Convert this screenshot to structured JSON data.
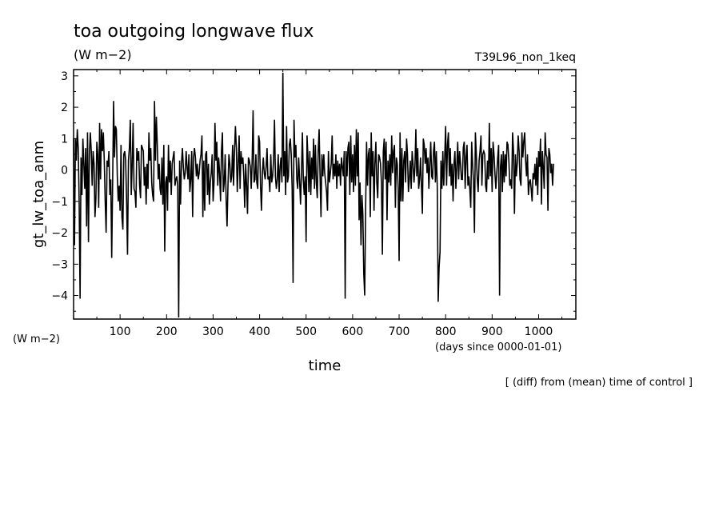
{
  "chart_data": {
    "type": "line",
    "title": "toa outgoing longwave flux",
    "units": "(W m−2)",
    "run_label": "T39L96_non_1keq",
    "ylabel": "gt_lw_toa_anm",
    "yunits_left": "(W m−2)",
    "xlabel": "time",
    "xunits": "(days since 0000-01-01)",
    "note": "[ (diff) from (mean) time of control ]",
    "xlim": [
      0,
      1080
    ],
    "ylim": [
      -4.75,
      3.2
    ],
    "xticks": [
      100,
      200,
      300,
      400,
      500,
      600,
      700,
      800,
      900,
      1000
    ],
    "xtick_labels": [
      "100",
      "200",
      "300",
      "400",
      "500",
      "600",
      "700",
      "800",
      "900",
      "1000"
    ],
    "yticks": [
      -4,
      -3,
      -2,
      -1,
      0,
      1,
      2,
      3
    ],
    "ytick_labels": [
      "−4",
      "−3",
      "−2",
      "−1",
      "0",
      "1",
      "2",
      "3"
    ],
    "series": [
      {
        "x_start": 0,
        "x_step": 2,
        "values": [
          1.0,
          -2.4,
          1.0,
          0.3,
          1.3,
          0.7,
          -1.0,
          -4.1,
          0.4,
          -0.8,
          1.0,
          0.2,
          -0.6,
          0.7,
          -1.8,
          1.2,
          -2.3,
          0.5,
          1.2,
          0.6,
          -0.5,
          0.6,
          0.2,
          -1.5,
          -0.9,
          0.9,
          0.5,
          -1.2,
          1.5,
          -0.3,
          1.3,
          0.6,
          1.2,
          0.3,
          -1.0,
          -2.0,
          0.3,
          0.1,
          0.6,
          -0.8,
          -0.3,
          -2.8,
          -0.4,
          2.2,
          0.4,
          1.4,
          1.3,
          -0.2,
          -1.0,
          -0.5,
          -1.3,
          0.8,
          -1.5,
          -1.9,
          0.5,
          0.6,
          0.3,
          -1.0,
          -2.7,
          0.3,
          0.7,
          1.6,
          -0.8,
          0.2,
          1.5,
          -0.6,
          -0.7,
          -1.2,
          0.7,
          0.3,
          0.6,
          -0.5,
          -0.9,
          0.8,
          0.7,
          0.6,
          -0.5,
          0.1,
          -1.1,
          0.2,
          -0.6,
          1.2,
          0.3,
          0.7,
          -0.4,
          -0.8,
          -1.0,
          2.2,
          0.3,
          1.7,
          0.8,
          -0.3,
          0.2,
          -0.6,
          -0.8,
          0.4,
          -1.1,
          0.8,
          -2.6,
          -0.4,
          -0.2,
          -1.3,
          0.8,
          -0.4,
          0.3,
          -0.8,
          0.2,
          0.4,
          0.6,
          -0.5,
          -0.3,
          -0.2,
          -0.5,
          -4.7,
          0.3,
          -1.1,
          0.2,
          0.7,
          0.1,
          -0.3,
          -0.1,
          0.6,
          0.1,
          -0.3,
          0.5,
          -0.7,
          -0.3,
          0.6,
          -1.5,
          0.4,
          0.7,
          0.4,
          -0.2,
          0.2,
          -0.3,
          -0.1,
          0.3,
          0.5,
          1.1,
          -1.5,
          0.3,
          -1.3,
          0.5,
          0.6,
          -0.8,
          0.2,
          -1.1,
          -0.4,
          -0.1,
          0.5,
          -1.0,
          -0.4,
          1.5,
          0.3,
          0.9,
          -0.5,
          0.4,
          -0.1,
          -1.0,
          0.6,
          1.2,
          -0.7,
          -0.4,
          0.5,
          -0.9,
          -1.8,
          -0.5,
          0.5,
          0.2,
          -0.4,
          -0.2,
          0.8,
          -0.5,
          0.6,
          1.4,
          0.7,
          -0.7,
          0.2,
          1.1,
          -0.6,
          0.6,
          0.2,
          0.4,
          -0.2,
          -1.2,
          0.2,
          -0.5,
          -1.4,
          0.4,
          0.3,
          0.1,
          -0.6,
          0.3,
          1.9,
          -0.4,
          -0.3,
          0.5,
          -0.4,
          -0.6,
          1.1,
          0.9,
          -0.5,
          -1.3,
          -0.1,
          0.4,
          -0.1,
          -0.3,
          0.1,
          0.7,
          -0.3,
          -0.2,
          -0.7,
          0.5,
          -0.4,
          -0.2,
          0.3,
          1.6,
          -0.2,
          -0.6,
          -0.3,
          0.5,
          -0.7,
          0.1,
          0.4,
          -0.4,
          3.1,
          -0.2,
          0.6,
          -0.8,
          1.4,
          -0.4,
          -0.2,
          0.8,
          1.0,
          0.5,
          -0.6,
          -3.6,
          1.6,
          0.4,
          0.8,
          -0.3,
          -0.6,
          0.4,
          -0.3,
          -1.1,
          -0.1,
          1.2,
          -0.3,
          -0.8,
          -0.2,
          -2.3,
          1.1,
          0.4,
          -0.7,
          0.6,
          -0.8,
          0.4,
          -0.3,
          1.0,
          -0.6,
          0.8,
          -0.4,
          -0.9,
          0.6,
          1.3,
          -0.2,
          -1.5,
          0.5,
          -0.2,
          0.5,
          -0.1,
          -0.4,
          -0.7,
          -1.3,
          0.6,
          -0.4,
          -0.1,
          0.2,
          1.1,
          -0.3,
          0.2,
          -0.2,
          0.5,
          -0.6,
          0.3,
          -0.2,
          0.2,
          -0.5,
          0.4,
          0.1,
          -0.2,
          0.6,
          -4.1,
          0.6,
          -0.2,
          0.7,
          0.9,
          -0.8,
          1.1,
          -0.4,
          0.5,
          -0.7,
          0.8,
          -0.5,
          1.3,
          -0.2,
          1.2,
          -1.6,
          -0.4,
          -2.4,
          -0.8,
          -1.4,
          -3.3,
          -4.0,
          -1.2,
          0.9,
          -0.5,
          0.5,
          0.7,
          -1.5,
          1.2,
          -0.2,
          0.6,
          -1.3,
          0.2,
          0.9,
          -0.4,
          -0.9,
          0.5,
          0.4,
          0.2,
          -0.4,
          -2.7,
          0.6,
          1.0,
          -0.3,
          0.9,
          -1.6,
          0.3,
          -0.4,
          0.5,
          -0.5,
          1.1,
          -0.1,
          0.6,
          0.8,
          -1.2,
          0.4,
          0.2,
          -0.6,
          -2.9,
          1.2,
          -1.0,
          0.7,
          -1.0,
          0.3,
          0.6,
          -0.4,
          1.0,
          0.5,
          -0.7,
          -0.3,
          0.3,
          -0.6,
          0.6,
          0.2,
          -0.4,
          0.1,
          1.3,
          -0.2,
          0.7,
          -0.6,
          -0.3,
          0.4,
          -0.5,
          -1.4,
          1.0,
          0.8,
          0.2,
          0.7,
          -0.1,
          0.4,
          -0.6,
          0.2,
          0.9,
          -0.2,
          -0.3,
          0.6,
          0.9,
          -0.4,
          0.6,
          -0.5,
          -4.2,
          -3.1,
          -2.6,
          0.3,
          -0.6,
          0.6,
          -0.5,
          0.4,
          1.4,
          -0.5,
          0.8,
          1.2,
          -0.2,
          0.7,
          -0.5,
          0.2,
          -1.0,
          0.2,
          0.6,
          -0.6,
          0.1,
          0.9,
          -0.3,
          0.6,
          0.2,
          -0.3,
          -0.3,
          0.7,
          0.9,
          -0.6,
          0.4,
          0.8,
          -0.5,
          -0.2,
          -0.6,
          -1.2,
          0.9,
          0.2,
          -0.4,
          -2.0,
          1.2,
          0.5,
          -0.3,
          -0.7,
          0.3,
          0.6,
          1.1,
          -0.5,
          0.5,
          0.6,
          0.5,
          -0.5,
          -0.7,
          0.3,
          -0.3,
          1.5,
          -0.2,
          0.7,
          -0.7,
          0.9,
          0.5,
          -0.1,
          -0.6,
          -0.1,
          0.4,
          0.8,
          -4.0,
          0.1,
          0.5,
          -0.7,
          0.6,
          -0.4,
          0.5,
          -0.2,
          0.9,
          0.8,
          0.3,
          -0.5,
          -0.3,
          -0.6,
          1.2,
          0.6,
          -1.4,
          0.5,
          -0.2,
          0.2,
          1.1,
          0.6,
          -0.3,
          -0.5,
          1.2,
          0.4,
          0.9,
          1.2,
          0.3,
          -0.2,
          0.5,
          -0.8,
          -0.4,
          -0.3,
          -0.6,
          -1.0,
          -0.1,
          -0.3,
          0.2,
          -0.5,
          0.4,
          -0.8,
          0.6,
          0.1,
          1.0,
          -1.1,
          0.6,
          0.1,
          -0.6,
          1.2,
          0.5,
          0.4,
          -1.3,
          0.7,
          0.5,
          -0.1,
          0.2,
          -0.5,
          0.2
        ]
      }
    ]
  }
}
